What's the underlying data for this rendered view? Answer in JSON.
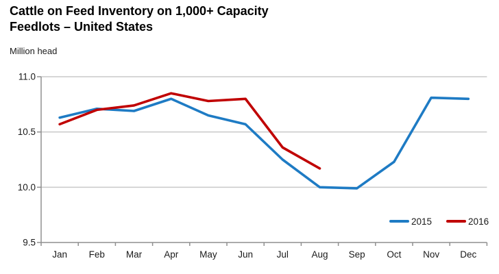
{
  "header": {
    "title_lines": [
      "Cattle on Feed Inventory on 1,000+ Capacity",
      "Feedlots – United States"
    ],
    "unit_label": "Million head"
  },
  "chart_data": {
    "type": "line",
    "title": "Cattle on Feed Inventory on 1,000+ Capacity Feedlots – United States",
    "ylabel": "Million head",
    "categories": [
      "Jan",
      "Feb",
      "Mar",
      "Apr",
      "May",
      "Jun",
      "Jul",
      "Aug",
      "Sep",
      "Oct",
      "Nov",
      "Dec"
    ],
    "series": [
      {
        "name": "2015",
        "color": "#1E7BC4",
        "values": [
          10.63,
          10.71,
          10.69,
          10.8,
          10.65,
          10.57,
          10.25,
          10.0,
          9.99,
          10.23,
          10.81,
          10.8
        ]
      },
      {
        "name": "2016",
        "color": "#C00000",
        "values": [
          10.57,
          10.7,
          10.74,
          10.85,
          10.78,
          10.8,
          10.36,
          10.17
        ]
      }
    ],
    "ylim": [
      9.5,
      11.0
    ],
    "yticks": [
      11.0,
      10.5,
      10.0,
      9.5
    ],
    "ytick_labels": [
      "11.0",
      "10.5",
      "10.0",
      "9.5"
    ],
    "grid": true,
    "legend_position": "bottom-right",
    "colors": {
      "gridline": "#C9C9C9",
      "axis": "#8F8F8F",
      "tick_text": "#1A1A1A"
    }
  }
}
